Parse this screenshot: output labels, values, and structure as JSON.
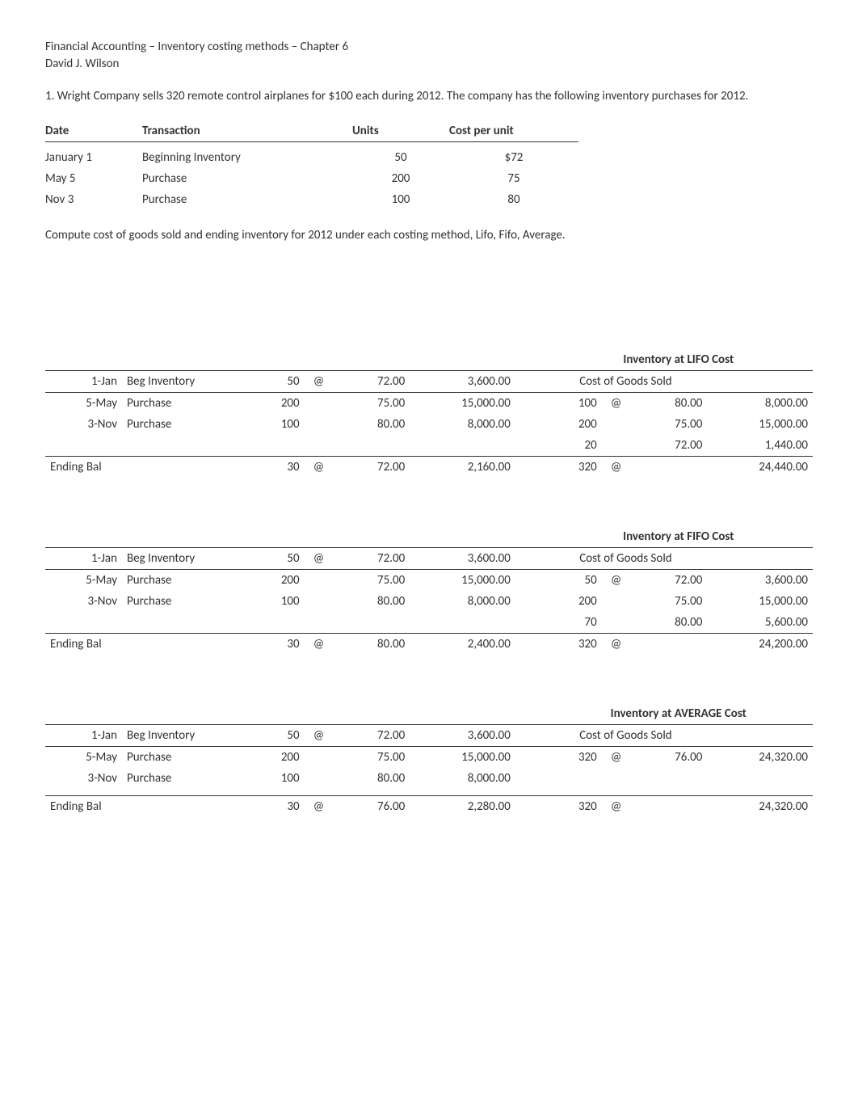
{
  "header": {
    "line1": "Financial Accounting – Inventory costing methods – Chapter 6",
    "line2": "David J. Wilson"
  },
  "intro": "1.  Wright Company sells 320 remote control airplanes for $100 each during 2012.  The company has the following inventory purchases for 2012.",
  "purchases": {
    "headers": {
      "date": "Date",
      "transaction": "Transaction",
      "units": "Units",
      "cpu": "Cost per unit"
    },
    "rows": [
      {
        "date": "January 1",
        "transaction": "Beginning Inventory",
        "units": "50",
        "cpu": "$72"
      },
      {
        "date": "May 5",
        "transaction": "Purchase",
        "units": "200",
        "cpu": "75"
      },
      {
        "date": "Nov 3",
        "transaction": "Purchase",
        "units": "100",
        "cpu": "80"
      }
    ]
  },
  "compute_note": "Compute cost of goods sold and ending inventory for 2012 under each costing method, Lifo, Fifo, Average.",
  "lifo": {
    "title": "Inventory at LIFO Cost",
    "cogs_label": "Cost of Goods Sold",
    "rows": [
      {
        "date": "1-Jan",
        "desc": "Beg Inventory",
        "units": "50",
        "at": "@",
        "price": "72.00",
        "ext": "3,600.00",
        "cogs_units": "",
        "cogs_at": "",
        "cogs_price": "",
        "cogs_ext": ""
      },
      {
        "date": "5-May",
        "desc": "Purchase",
        "units": "200",
        "at": "",
        "price": "75.00",
        "ext": "15,000.00",
        "cogs_units": "100",
        "cogs_at": "@",
        "cogs_price": "80.00",
        "cogs_ext": "8,000.00"
      },
      {
        "date": "3-Nov",
        "desc": "Purchase",
        "units": "100",
        "at": "",
        "price": "80.00",
        "ext": "8,000.00",
        "cogs_units": "200",
        "cogs_at": "",
        "cogs_price": "75.00",
        "cogs_ext": "15,000.00"
      },
      {
        "date": "",
        "desc": "",
        "units": "",
        "at": "",
        "price": "",
        "ext": "",
        "cogs_units": "20",
        "cogs_at": "",
        "cogs_price": "72.00",
        "cogs_ext": "1,440.00"
      }
    ],
    "ending": {
      "label": "Ending Bal",
      "units": "30",
      "at": "@",
      "price": "72.00",
      "ext": "2,160.00",
      "cogs_units": "320",
      "cogs_at": "@",
      "cogs_price": "",
      "cogs_ext": "24,440.00"
    }
  },
  "fifo": {
    "title": "Inventory at FIFO Cost",
    "cogs_label": "Cost of Goods Sold",
    "rows": [
      {
        "date": "1-Jan",
        "desc": "Beg Inventory",
        "units": "50",
        "at": "@",
        "price": "72.00",
        "ext": "3,600.00",
        "cogs_units": "",
        "cogs_at": "",
        "cogs_price": "",
        "cogs_ext": ""
      },
      {
        "date": "5-May",
        "desc": "Purchase",
        "units": "200",
        "at": "",
        "price": "75.00",
        "ext": "15,000.00",
        "cogs_units": "50",
        "cogs_at": "@",
        "cogs_price": "72.00",
        "cogs_ext": "3,600.00"
      },
      {
        "date": "3-Nov",
        "desc": "Purchase",
        "units": "100",
        "at": "",
        "price": "80.00",
        "ext": "8,000.00",
        "cogs_units": "200",
        "cogs_at": "",
        "cogs_price": "75.00",
        "cogs_ext": "15,000.00"
      },
      {
        "date": "",
        "desc": "",
        "units": "",
        "at": "",
        "price": "",
        "ext": "",
        "cogs_units": "70",
        "cogs_at": "",
        "cogs_price": "80.00",
        "cogs_ext": "5,600.00"
      }
    ],
    "ending": {
      "label": "Ending Bal",
      "units": "30",
      "at": "@",
      "price": "80.00",
      "ext": "2,400.00",
      "cogs_units": "320",
      "cogs_at": "@",
      "cogs_price": "",
      "cogs_ext": "24,200.00"
    }
  },
  "avg": {
    "title": "Inventory at AVERAGE Cost",
    "cogs_label": "Cost of Goods Sold",
    "rows": [
      {
        "date": "1-Jan",
        "desc": "Beg Inventory",
        "units": "50",
        "at": "@",
        "price": "72.00",
        "ext": "3,600.00",
        "cogs_units": "",
        "cogs_at": "",
        "cogs_price": "",
        "cogs_ext": ""
      },
      {
        "date": "5-May",
        "desc": "Purchase",
        "units": "200",
        "at": "",
        "price": "75.00",
        "ext": "15,000.00",
        "cogs_units": "320",
        "cogs_at": "@",
        "cogs_price": "76.00",
        "cogs_ext": "24,320.00"
      },
      {
        "date": "3-Nov",
        "desc": "Purchase",
        "units": "100",
        "at": "",
        "price": "80.00",
        "ext": "8,000.00",
        "cogs_units": "",
        "cogs_at": "",
        "cogs_price": "",
        "cogs_ext": ""
      }
    ],
    "ending": {
      "label": "Ending Bal",
      "units": "30",
      "at": "@",
      "price": "76.00",
      "ext": "2,280.00",
      "cogs_units": "320",
      "cogs_at": "@",
      "cogs_price": "",
      "cogs_ext": "24,320.00"
    }
  }
}
